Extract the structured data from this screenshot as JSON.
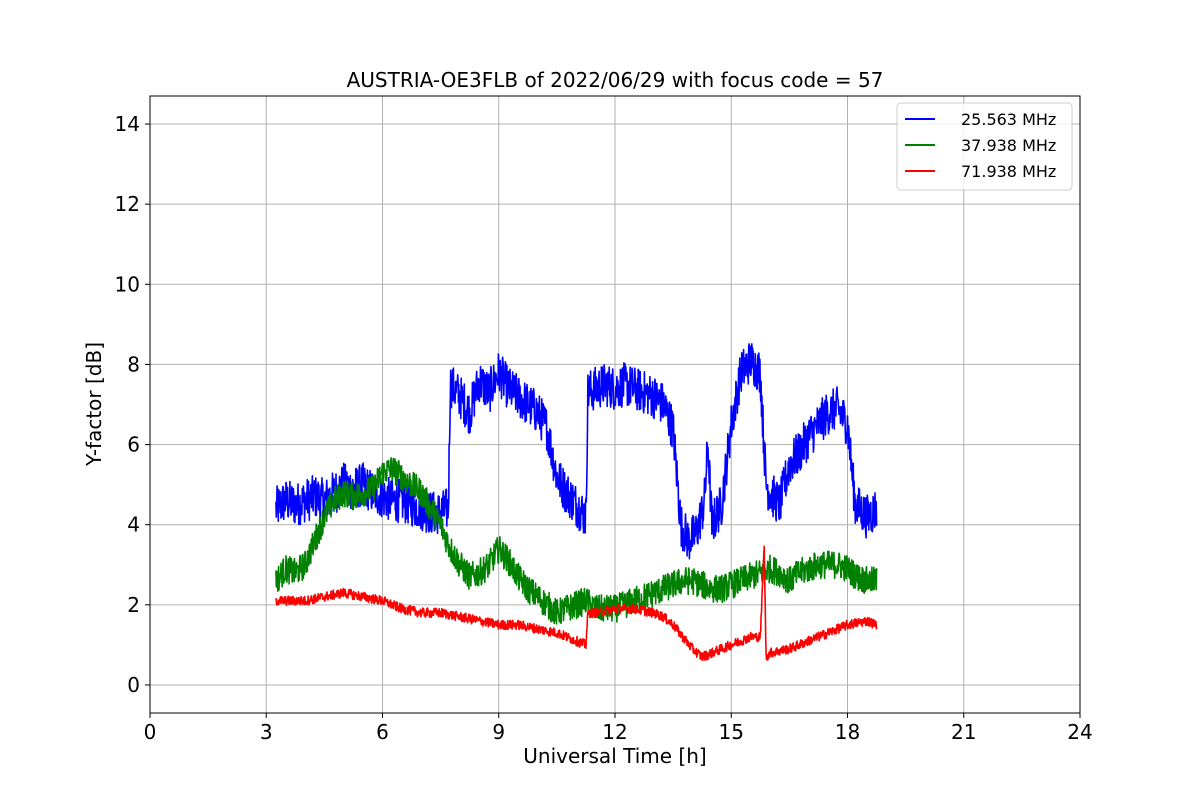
{
  "chart_data": {
    "type": "line",
    "title": "AUSTRIA-OE3FLB of 2022/06/29 with focus code = 57",
    "xlabel": "Universal Time [h]",
    "ylabel": "Y-factor [dB]",
    "xlim": [
      0,
      24
    ],
    "ylim": [
      -0.7,
      14.7
    ],
    "xticks": [
      "0",
      "3",
      "6",
      "9",
      "12",
      "15",
      "18",
      "21",
      "24"
    ],
    "yticks": [
      "0",
      "2",
      "4",
      "6",
      "8",
      "10",
      "12",
      "14"
    ],
    "grid": true,
    "legend_position": "top-right",
    "series": [
      {
        "name": "25.563 MHz",
        "color": "#0000ff",
        "x": [
          3.25,
          3.5,
          3.75,
          4.0,
          4.25,
          4.5,
          4.75,
          5.0,
          5.25,
          5.5,
          5.75,
          6.0,
          6.25,
          6.5,
          6.75,
          7.0,
          7.25,
          7.5,
          7.7,
          7.75,
          8.0,
          8.25,
          8.5,
          8.75,
          9.0,
          9.25,
          9.5,
          9.75,
          10.0,
          10.25,
          10.5,
          10.75,
          11.0,
          11.25,
          11.3,
          11.5,
          11.75,
          12.0,
          12.25,
          12.5,
          12.75,
          13.0,
          13.25,
          13.5,
          13.7,
          13.9,
          14.1,
          14.3,
          14.4,
          14.5,
          14.75,
          15.0,
          15.25,
          15.5,
          15.75,
          15.9,
          16.0,
          16.25,
          16.5,
          16.75,
          17.0,
          17.25,
          17.5,
          17.75,
          18.0,
          18.2,
          18.5,
          18.75
        ],
        "values": [
          4.4,
          4.6,
          4.5,
          4.6,
          4.7,
          4.6,
          4.8,
          5.0,
          4.9,
          5.0,
          4.8,
          4.7,
          4.6,
          4.6,
          4.5,
          4.4,
          4.3,
          4.3,
          4.4,
          7.5,
          7.2,
          6.8,
          7.6,
          7.3,
          7.8,
          7.4,
          7.2,
          7.0,
          6.8,
          6.4,
          5.2,
          4.8,
          4.5,
          4.2,
          7.3,
          7.4,
          7.5,
          7.4,
          7.5,
          7.4,
          7.3,
          7.2,
          7.0,
          6.4,
          4.0,
          3.6,
          3.8,
          4.5,
          6.0,
          4.0,
          4.5,
          6.5,
          7.8,
          8.1,
          7.8,
          5.0,
          4.8,
          4.5,
          5.5,
          5.8,
          6.2,
          6.5,
          6.8,
          6.9,
          6.5,
          4.5,
          4.2,
          4.4
        ]
      },
      {
        "name": "37.938 MHz",
        "color": "#008000",
        "x": [
          3.25,
          3.5,
          3.75,
          4.0,
          4.25,
          4.5,
          4.75,
          5.0,
          5.25,
          5.5,
          5.75,
          6.0,
          6.25,
          6.5,
          6.75,
          7.0,
          7.25,
          7.5,
          7.75,
          8.0,
          8.25,
          8.5,
          8.75,
          9.0,
          9.25,
          9.5,
          9.75,
          10.0,
          10.25,
          10.5,
          10.75,
          11.0,
          11.25,
          11.5,
          11.75,
          12.0,
          12.25,
          12.5,
          12.75,
          13.0,
          13.25,
          13.5,
          13.75,
          14.0,
          14.25,
          14.5,
          14.75,
          15.0,
          15.25,
          15.5,
          15.75,
          16.0,
          16.25,
          16.5,
          16.75,
          17.0,
          17.25,
          17.5,
          17.75,
          18.0,
          18.25,
          18.5,
          18.75
        ],
        "values": [
          2.6,
          2.9,
          2.8,
          3.0,
          3.6,
          4.2,
          4.6,
          4.8,
          4.7,
          4.8,
          4.9,
          5.3,
          5.4,
          5.2,
          5.0,
          4.8,
          4.4,
          4.0,
          3.4,
          3.0,
          2.7,
          2.8,
          3.0,
          3.4,
          3.1,
          2.7,
          2.4,
          2.2,
          2.0,
          1.8,
          1.9,
          2.0,
          2.1,
          1.9,
          1.9,
          1.9,
          2.0,
          2.1,
          2.2,
          2.3,
          2.4,
          2.5,
          2.6,
          2.6,
          2.5,
          2.4,
          2.4,
          2.5,
          2.6,
          2.7,
          2.8,
          2.9,
          2.8,
          2.6,
          2.8,
          2.9,
          3.0,
          3.0,
          3.0,
          2.9,
          2.7,
          2.6,
          2.6
        ]
      },
      {
        "name": "71.938 MHz",
        "color": "#ff0000",
        "x": [
          3.25,
          3.5,
          4.0,
          4.5,
          5.0,
          5.5,
          6.0,
          6.5,
          7.0,
          7.5,
          8.0,
          8.5,
          9.0,
          9.5,
          10.0,
          10.5,
          11.0,
          11.25,
          11.3,
          11.5,
          12.0,
          12.5,
          13.0,
          13.25,
          13.5,
          13.75,
          14.0,
          14.25,
          14.5,
          14.75,
          15.0,
          15.25,
          15.5,
          15.75,
          15.85,
          15.9,
          16.0,
          16.5,
          17.0,
          17.5,
          18.0,
          18.5,
          18.75
        ],
        "values": [
          2.1,
          2.1,
          2.1,
          2.2,
          2.3,
          2.2,
          2.1,
          1.9,
          1.8,
          1.8,
          1.7,
          1.6,
          1.5,
          1.5,
          1.4,
          1.3,
          1.1,
          1.0,
          1.8,
          1.8,
          1.9,
          1.9,
          1.8,
          1.7,
          1.5,
          1.2,
          0.9,
          0.7,
          0.8,
          0.9,
          1.0,
          1.1,
          1.2,
          1.2,
          3.4,
          0.7,
          0.8,
          0.9,
          1.1,
          1.3,
          1.5,
          1.6,
          1.5
        ]
      }
    ]
  }
}
